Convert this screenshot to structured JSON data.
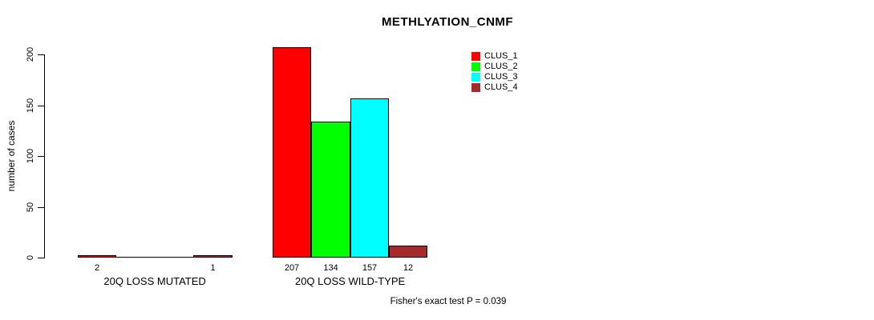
{
  "chart_data": {
    "type": "bar",
    "title": "METHLYATION_CNMF",
    "ylabel": "number of cases",
    "xlabel": "",
    "ylim": [
      0,
      200
    ],
    "yticks": [
      "0",
      "50",
      "100",
      "150",
      "200"
    ],
    "grid": false,
    "legend_position": "top-right",
    "groups": [
      "20Q LOSS MUTATED",
      "20Q LOSS WILD-TYPE"
    ],
    "series": [
      {
        "name": "CLUS_1",
        "color": "#ff0000",
        "values": [
          2,
          207
        ]
      },
      {
        "name": "CLUS_2",
        "color": "#00ff00",
        "values": [
          0,
          134
        ]
      },
      {
        "name": "CLUS_3",
        "color": "#00ffff",
        "values": [
          0,
          157
        ]
      },
      {
        "name": "CLUS_4",
        "color": "#a52a2a",
        "values": [
          1,
          12
        ]
      }
    ],
    "bar_labels": [
      [
        "2",
        "",
        "",
        "1"
      ],
      [
        "207",
        "134",
        "157",
        "12"
      ]
    ],
    "annotation": "Fisher's exact test P = 0.039"
  }
}
